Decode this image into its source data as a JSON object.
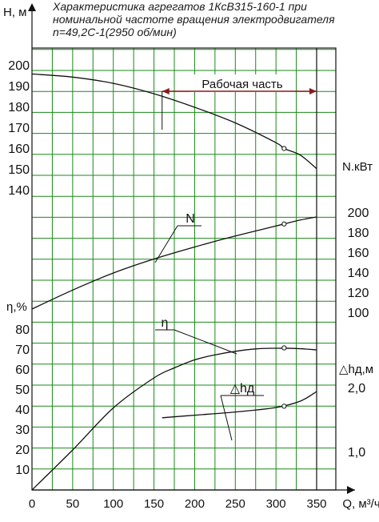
{
  "title_lines": [
    "Характеристика агрегатов 1КсВ315-160-1 при",
    "номинальной частоте вращения электродвигателя",
    "n=49,2С-1(2950 об/мин)"
  ],
  "chart_data": {
    "type": "line",
    "grid": true,
    "x_axis": {
      "label": "Q, м³/ч",
      "range": [
        0,
        350
      ],
      "ticks": [
        "0",
        "50",
        "100",
        "150",
        "200",
        "250",
        "300",
        "350"
      ]
    },
    "axes": {
      "H": {
        "label": "H, м",
        "range": [
          130,
          200
        ],
        "ticks": [
          "200",
          "190",
          "180",
          "170",
          "160",
          "150",
          "140"
        ]
      },
      "N": {
        "label": "N.кВт",
        "range": [
          100,
          200
        ],
        "ticks": [
          "200",
          "180",
          "160",
          "140",
          "120",
          "100"
        ]
      },
      "eta": {
        "label": "η,%",
        "range": [
          0,
          80
        ],
        "ticks": [
          "80",
          "70",
          "60",
          "50",
          "40",
          "30",
          "20",
          "10"
        ]
      },
      "dh": {
        "label": "△hд,м",
        "ticks": [
          "2,0",
          "1,0"
        ]
      }
    },
    "working_zone": {
      "label": "Рабочая часть",
      "range": [
        160,
        350
      ]
    },
    "series": [
      {
        "key": "H",
        "x": [
          0,
          50,
          100,
          150,
          200,
          250,
          300,
          310,
          330,
          350
        ],
        "y": [
          196,
          194.5,
          191.5,
          186.5,
          180,
          172.5,
          163,
          160.2,
          157,
          150.5
        ],
        "marker": {
          "x": 310,
          "y": 160.2
        }
      },
      {
        "key": "N",
        "name": "N",
        "x": [
          0,
          50,
          100,
          150,
          200,
          250,
          300,
          310,
          330,
          350
        ],
        "y": [
          104,
          123,
          140,
          154,
          166,
          177,
          187,
          189,
          193,
          196
        ],
        "marker": {
          "x": 310,
          "y": 189
        }
      },
      {
        "key": "eta",
        "name": "η",
        "x": [
          0,
          50,
          100,
          150,
          175,
          200,
          225,
          250,
          275,
          300,
          325,
          350
        ],
        "y": [
          0,
          20,
          41,
          56,
          61,
          65,
          67.5,
          69.3,
          70.5,
          70.8,
          70.7,
          70
        ],
        "marker": {
          "x": 310,
          "y": 71
        }
      },
      {
        "key": "dh",
        "name": "△hд",
        "x": [
          160,
          200,
          250,
          300,
          330,
          350
        ],
        "y": [
          1.54,
          1.58,
          1.63,
          1.7,
          1.8,
          1.95
        ],
        "marker": {
          "x": 310,
          "y": 1.72
        }
      }
    ]
  }
}
